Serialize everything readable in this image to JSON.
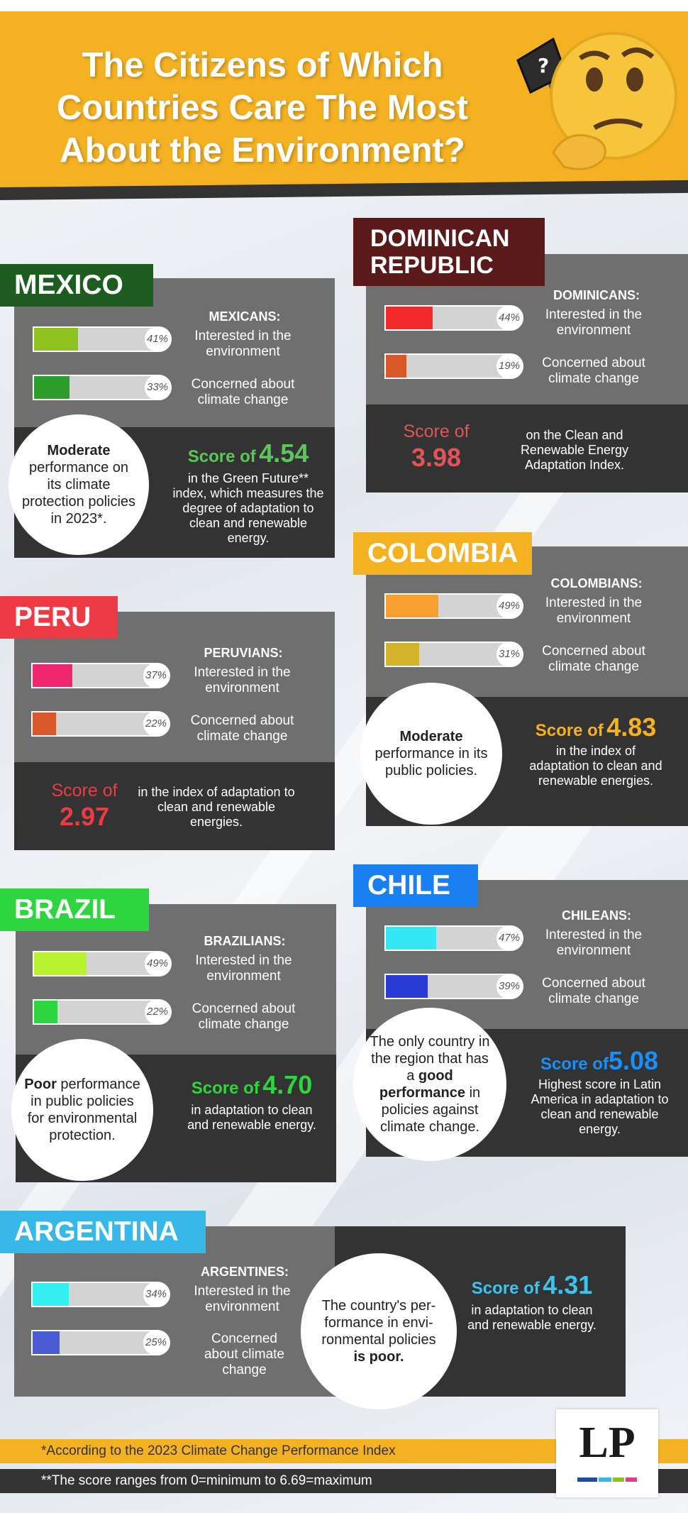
{
  "header": {
    "title": "The Citizens of Which Countries Care The Most About the Environment?"
  },
  "colors": {
    "banner": "#f4b223",
    "card_light": "#6f6f6f",
    "card_dark": "#333333"
  },
  "icons": {
    "header": "thinking-face-flag-icon"
  },
  "countries": [
    {
      "key": "mexico",
      "name": "MEXICO",
      "tag_color": "#1d5e20",
      "demonym": "MEXICANS:",
      "interested": {
        "label": "Interested in the environment",
        "value": 41,
        "pct": "41%",
        "color": "#8dc21f"
      },
      "concerned": {
        "label": "Concerned about climate change",
        "value": 33,
        "pct": "33%",
        "color": "#2a9d2a"
      },
      "circle": "Moderate performance on its climate protection policies in 2023*.",
      "circle_bold": "Moderate",
      "score_prefix": "Score of",
      "score": "4.54",
      "score_color": "#5cc65a",
      "score_text": "in the Green Future** index, which measures the degree of adaptation to clean and renewable energy."
    },
    {
      "key": "dominican",
      "name": "DOMINICAN REPUBLIC",
      "tag_color": "#5a1a1a",
      "demonym": "DOMINICANS:",
      "interested": {
        "label": "Interested in the environment",
        "value": 44,
        "pct": "44%",
        "color": "#f12b2b"
      },
      "concerned": {
        "label": "Concerned about climate change",
        "value": 19,
        "pct": "19%",
        "color": "#d9582a"
      },
      "score_prefix": "Score of",
      "score": "3.98",
      "score_color": "#e0545a",
      "score_text": "on the Clean and Renewable Energy Adaptation Index."
    },
    {
      "key": "peru",
      "name": "PERU",
      "tag_color": "#ee3a45",
      "demonym": "PERUVIANS:",
      "interested": {
        "label": "Interested in the environment",
        "value": 37,
        "pct": "37%",
        "color": "#f0266f"
      },
      "concerned": {
        "label": "Concerned about climate change",
        "value": 22,
        "pct": "22%",
        "color": "#d9582a"
      },
      "score_prefix": "Score of",
      "score": "2.97",
      "score_color": "#ee3a45",
      "score_text": "in the index of adaptation to clean and renewable energies."
    },
    {
      "key": "colombia",
      "name": "COLOMBIA",
      "tag_color": "#f4b223",
      "demonym": "COLOMBIANS:",
      "interested": {
        "label": "Interested in the environment",
        "value": 49,
        "pct": "49%",
        "color": "#f7a032"
      },
      "concerned": {
        "label": "Concerned about climate change",
        "value": 31,
        "pct": "31%",
        "color": "#d4b32b"
      },
      "circle": "Moderate performance in its public policies.",
      "circle_bold": "Moderate",
      "score_prefix": "Score of",
      "score": "4.83",
      "score_color": "#f4b223",
      "score_text": "in the index of adaptation to clean and renewable energies."
    },
    {
      "key": "brazil",
      "name": "BRAZIL",
      "tag_color": "#2fd53f",
      "demonym": "BRAZILIANS:",
      "interested": {
        "label": "Interested in the environment",
        "value": 49,
        "pct": "49%",
        "color": "#b6f22d"
      },
      "concerned": {
        "label": "Concerned about climate change",
        "value": 22,
        "pct": "22%",
        "color": "#2fd53f"
      },
      "circle": "Poor performance in public policies for environmental protection.",
      "circle_bold": "Poor",
      "score_prefix": "Score of",
      "score": "4.70",
      "score_color": "#2fd53f",
      "score_text": "in adaptation to clean and renewable energy."
    },
    {
      "key": "chile",
      "name": "CHILE",
      "tag_color": "#1a7ff0",
      "demonym": "CHILEANS:",
      "interested": {
        "label": "Interested in the environment",
        "value": 47,
        "pct": "47%",
        "color": "#35e7f5"
      },
      "concerned": {
        "label": "Concerned about climate change",
        "value": 39,
        "pct": "39%",
        "color": "#2a3bd4"
      },
      "circle_pre": "The only country in the region that has a ",
      "circle_bold": "good performance",
      "circle_post": " in policies against climate change.",
      "score_prefix": "Score of",
      "score": "5.08",
      "score_color": "#1a8ff5",
      "score_text": "Highest score in Latin America in adaptation to clean and renewable energy."
    },
    {
      "key": "argentina",
      "name": "ARGENTINA",
      "tag_color": "#37b8e8",
      "demonym": "ARGENTINES:",
      "interested": {
        "label": "Interested in the environment",
        "value": 34,
        "pct": "34%",
        "color": "#35eff5"
      },
      "concerned": {
        "label": "Concerned about climate change",
        "value": 25,
        "pct": "25%",
        "color": "#4a5bd4"
      },
      "circle_pre": "The country's per-formance in envi-ronmental policies ",
      "circle_bold": "is poor.",
      "circle_post": "",
      "score_prefix": "Score of",
      "score": "4.31",
      "score_color": "#3ec3ee",
      "score_text": "in adaptation to clean and renewable energy."
    }
  ],
  "footer": {
    "note1": "*According to the 2023 Climate Change Performance Index",
    "note2": "**The score ranges from 0=minimum to 6.69=maximum",
    "logo": "LP"
  },
  "chart_data": {
    "type": "bar",
    "categories": [
      "MEXICO",
      "DOMINICAN REPUBLIC",
      "PERU",
      "COLOMBIA",
      "BRAZIL",
      "CHILE",
      "ARGENTINA"
    ],
    "series": [
      {
        "name": "Interested in the environment",
        "values": [
          41,
          44,
          37,
          49,
          49,
          47,
          34
        ]
      },
      {
        "name": "Concerned about climate change",
        "values": [
          33,
          19,
          22,
          31,
          22,
          39,
          25
        ]
      }
    ],
    "scores": [
      4.54,
      3.98,
      2.97,
      4.83,
      4.7,
      5.08,
      4.31
    ],
    "ylim": [
      0,
      100
    ]
  }
}
